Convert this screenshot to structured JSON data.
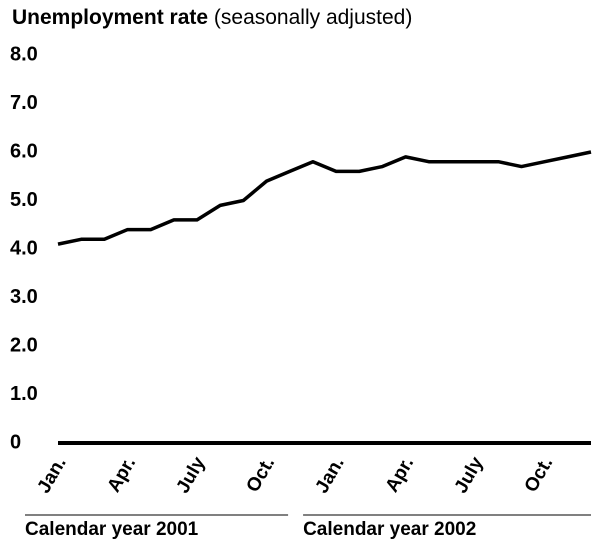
{
  "chart_data": {
    "type": "line",
    "title": "Unemployment rate",
    "subtitle": "(seasonally adjusted)",
    "categories": [
      "Jan.",
      null,
      null,
      "Apr.",
      null,
      null,
      "July",
      null,
      null,
      "Oct.",
      null,
      null,
      "Jan.",
      null,
      null,
      "Apr.",
      null,
      null,
      "July",
      null,
      null,
      "Oct.",
      null,
      null
    ],
    "x_groups": [
      "Calendar year 2001",
      "Calendar year 2002"
    ],
    "series": [
      {
        "color": "#000000",
        "values": [
          4.1,
          4.2,
          4.2,
          4.4,
          4.4,
          4.6,
          4.6,
          4.9,
          5.0,
          5.4,
          5.6,
          5.8,
          5.6,
          5.6,
          5.7,
          5.9,
          5.8,
          5.8,
          5.8,
          5.8,
          5.7,
          5.8,
          5.9,
          6.0
        ]
      }
    ],
    "ylim": [
      0,
      8
    ],
    "yticks": [
      0,
      {
        "value": 1,
        "label": "1.0"
      },
      {
        "value": 2,
        "label": "2.0"
      },
      {
        "value": 3,
        "label": "3.0"
      },
      {
        "value": 4,
        "label": "4.0"
      },
      {
        "value": 5,
        "label": "5.0"
      },
      {
        "value": 6,
        "label": "6.0"
      },
      {
        "value": 7,
        "label": "7.0"
      },
      {
        "value": 8,
        "label": "8.0"
      }
    ],
    "grid": false
  }
}
